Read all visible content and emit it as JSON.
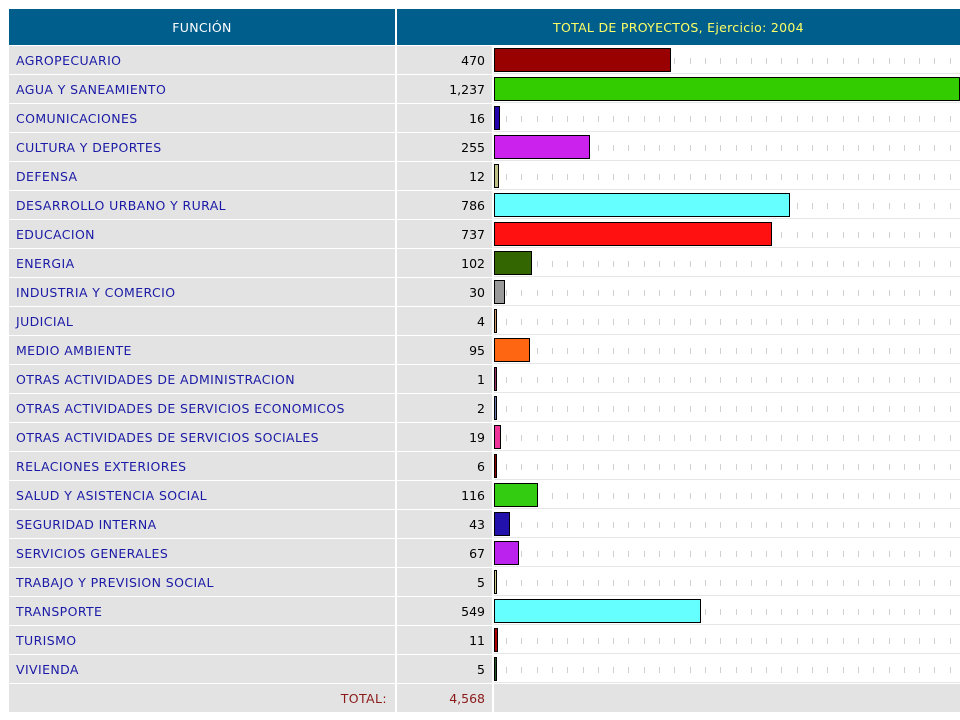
{
  "header": {
    "function_label": "FUNCIÓN",
    "total_label": "TOTAL DE PROYECTOS, Ejercicio: 2004"
  },
  "total_row": {
    "label": "TOTAL:",
    "value": "4,568"
  },
  "chart_data": {
    "type": "bar",
    "orientation": "horizontal",
    "title": "TOTAL DE PROYECTOS, Ejercicio: 2004",
    "category_header": "FUNCIÓN",
    "categories": [
      "AGROPECUARIO",
      "AGUA Y SANEAMIENTO",
      "COMUNICACIONES",
      "CULTURA Y DEPORTES",
      "DEFENSA",
      "DESARROLLO URBANO Y RURAL",
      "EDUCACION",
      "ENERGIA",
      "INDUSTRIA Y COMERCIO",
      "JUDICIAL",
      "MEDIO AMBIENTE",
      "OTRAS ACTIVIDADES DE ADMINISTRACION",
      "OTRAS ACTIVIDADES DE SERVICIOS ECONOMICOS",
      "OTRAS ACTIVIDADES DE SERVICIOS SOCIALES",
      "RELACIONES EXTERIORES",
      "SALUD Y ASISTENCIA SOCIAL",
      "SEGURIDAD INTERNA",
      "SERVICIOS GENERALES",
      "TRABAJO Y PREVISION SOCIAL",
      "TRANSPORTE",
      "TURISMO",
      "VIVIENDA"
    ],
    "values": [
      470,
      1237,
      16,
      255,
      12,
      786,
      737,
      102,
      30,
      4,
      95,
      1,
      2,
      19,
      6,
      116,
      43,
      67,
      5,
      549,
      11,
      5
    ],
    "value_labels": [
      "470",
      "1,237",
      "16",
      "255",
      "12",
      "786",
      "737",
      "102",
      "30",
      "4",
      "95",
      "1",
      "2",
      "19",
      "6",
      "116",
      "43",
      "67",
      "5",
      "549",
      "11",
      "5"
    ],
    "colors": [
      "#990000",
      "#33cc00",
      "#2200aa",
      "#cc22ee",
      "#bfbf88",
      "#66ffff",
      "#ff1111",
      "#336600",
      "#999999",
      "#cc9966",
      "#ff6611",
      "#993366",
      "#6677aa",
      "#ee3399",
      "#880000",
      "#33cc11",
      "#2211aa",
      "#bb22ee",
      "#cccc88",
      "#66ffff",
      "#aa0000",
      "#225522"
    ],
    "xlim": [
      0,
      1237
    ],
    "grid": false,
    "legend": "none"
  }
}
